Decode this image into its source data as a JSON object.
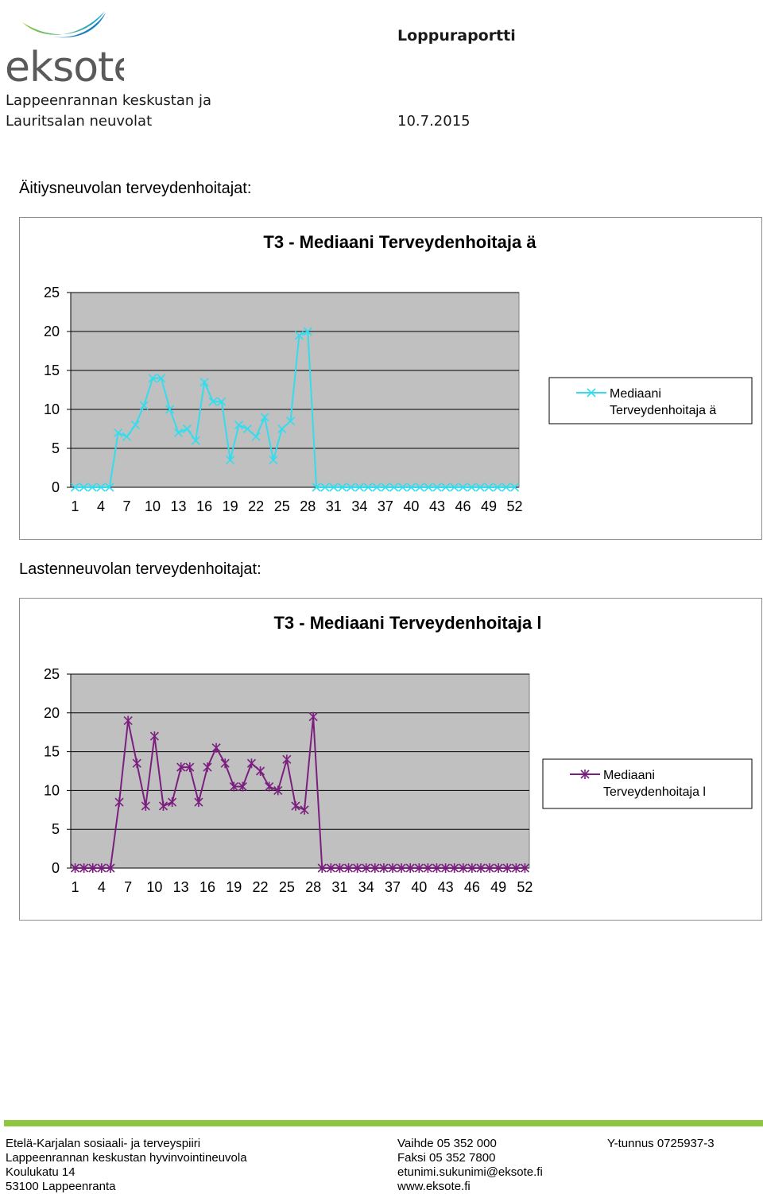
{
  "header": {
    "logo_text": "eksote",
    "report_title": "Loppuraportti",
    "org_line1": "Lappeenrannan keskustan ja",
    "org_line2": "Lauritsalan neuvolat",
    "date": "10.7.2015"
  },
  "sections": {
    "maternity_label": "Äitiysneuvolan terveydenhoitajat:",
    "child_label": "Lastenneuvolan terveydenhoitajat:"
  },
  "chart_data": [
    {
      "type": "line",
      "title": "T3 - Mediaani Terveydenhoitaja ä",
      "xlabel": "",
      "ylabel": "",
      "ylim": [
        0,
        25
      ],
      "yticks": [
        "0",
        "5",
        "10",
        "15",
        "20",
        "25"
      ],
      "x": [
        1,
        2,
        3,
        4,
        5,
        6,
        7,
        8,
        9,
        10,
        11,
        12,
        13,
        14,
        15,
        16,
        17,
        18,
        19,
        20,
        21,
        22,
        23,
        24,
        25,
        26,
        27,
        28,
        29,
        30,
        31,
        32,
        33,
        34,
        35,
        36,
        37,
        38,
        39,
        40,
        41,
        42,
        43,
        44,
        45,
        46,
        47,
        48,
        49,
        50,
        51,
        52
      ],
      "xtick_labels": [
        "1",
        "4",
        "7",
        "10",
        "13",
        "16",
        "19",
        "22",
        "25",
        "28",
        "31",
        "34",
        "37",
        "40",
        "43",
        "46",
        "49",
        "52"
      ],
      "grid": true,
      "legend_position": "right",
      "series": [
        {
          "name": "Mediaani Terveydenhoitaja ä",
          "color": "#33ddee",
          "marker": "x",
          "values": [
            0,
            0,
            0,
            0,
            0,
            7,
            6.5,
            8,
            10.5,
            14,
            14,
            10,
            7,
            7.5,
            6,
            13.5,
            11,
            11,
            3.5,
            8,
            7.5,
            6.5,
            9,
            3.5,
            7.5,
            8.5,
            19.5,
            20,
            0,
            0,
            0,
            0,
            0,
            0,
            0,
            0,
            0,
            0,
            0,
            0,
            0,
            0,
            0,
            0,
            0,
            0,
            0,
            0,
            0,
            0,
            0,
            0
          ]
        }
      ]
    },
    {
      "type": "line",
      "title": "T3 - Mediaani Terveydenhoitaja l",
      "xlabel": "",
      "ylabel": "",
      "ylim": [
        0,
        25
      ],
      "yticks": [
        "0",
        "5",
        "10",
        "15",
        "20",
        "25"
      ],
      "x": [
        1,
        2,
        3,
        4,
        5,
        6,
        7,
        8,
        9,
        10,
        11,
        12,
        13,
        14,
        15,
        16,
        17,
        18,
        19,
        20,
        21,
        22,
        23,
        24,
        25,
        26,
        27,
        28,
        29,
        30,
        31,
        32,
        33,
        34,
        35,
        36,
        37,
        38,
        39,
        40,
        41,
        42,
        43,
        44,
        45,
        46,
        47,
        48,
        49,
        50,
        51,
        52
      ],
      "xtick_labels": [
        "1",
        "4",
        "7",
        "10",
        "13",
        "16",
        "19",
        "22",
        "25",
        "28",
        "31",
        "34",
        "37",
        "40",
        "43",
        "46",
        "49",
        "52"
      ],
      "grid": true,
      "legend_position": "right",
      "series": [
        {
          "name": "Mediaani Terveydenhoitaja l",
          "color": "#7b1f7f",
          "marker": "star",
          "values": [
            0,
            0,
            0,
            0,
            0,
            8.5,
            19,
            13.5,
            8,
            17,
            8,
            8.5,
            13,
            13,
            8.5,
            13,
            15.5,
            13.5,
            10.5,
            10.5,
            13.5,
            12.5,
            10.5,
            10,
            14,
            8,
            7.5,
            19.5,
            0,
            0,
            0,
            0,
            0,
            0,
            0,
            0,
            0,
            0,
            0,
            0,
            0,
            0,
            0,
            0,
            0,
            0,
            0,
            0,
            0,
            0,
            0,
            0
          ]
        }
      ]
    }
  ],
  "legend": {
    "chart1_line1": "Mediaani",
    "chart1_line2": "Terveydenhoitaja ä",
    "chart2_line1": "Mediaani",
    "chart2_line2": "Terveydenhoitaja l"
  },
  "footer": {
    "col1": [
      "Etelä-Karjalan sosiaali- ja terveyspiiri",
      "Lappeenrannan keskustan hyvinvointineuvola",
      "Koulukatu 14",
      "53100 Lappeenranta"
    ],
    "col2": [
      "Vaihde 05 352 000",
      "Faksi 05 352 7800",
      "etunimi.sukunimi@eksote.fi",
      "www.eksote.fi"
    ],
    "col3": [
      "Y-tunnus 0725937-3"
    ]
  },
  "colors": {
    "logo_green": "#8dc63f",
    "logo_blue": "#1a7fc1",
    "logo_text": "#5a5a5a",
    "plot_bg": "#c0c0c0",
    "footer_bar": "#8dc63f"
  },
  "icons": {
    "logo": "eksote-swoosh-logo"
  }
}
